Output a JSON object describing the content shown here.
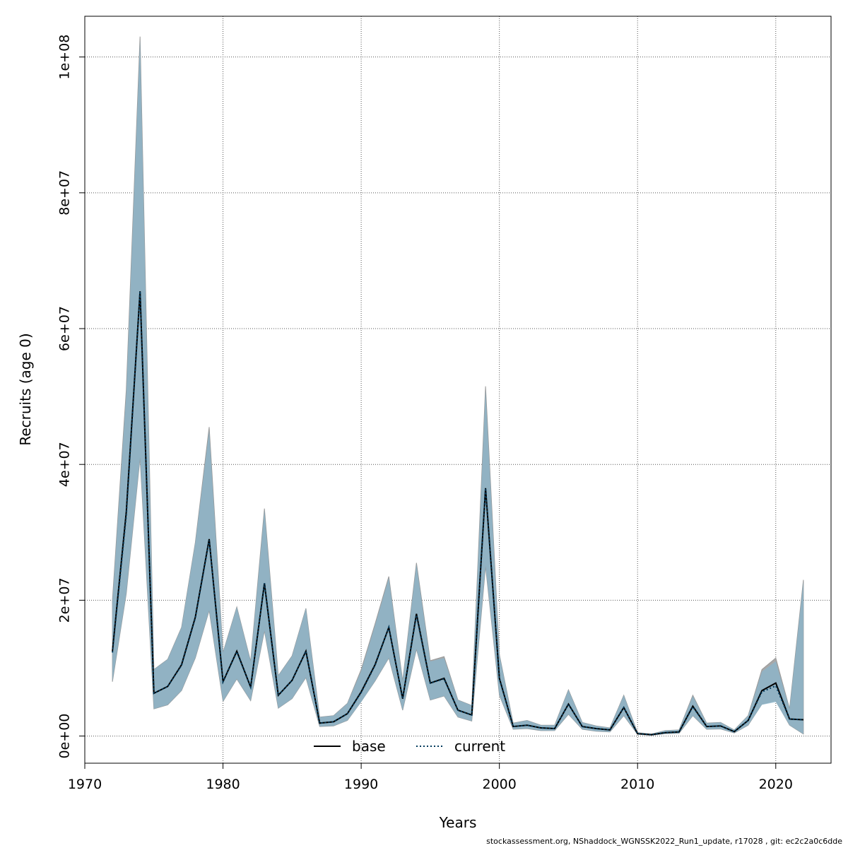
{
  "chart_data": {
    "type": "line",
    "xlabel": "Years",
    "ylabel": "Recruits (age 0)",
    "xlim": [
      1970,
      2024
    ],
    "ylim": [
      -4000000,
      106000000
    ],
    "xticks": [
      1970,
      1980,
      1990,
      2000,
      2010,
      2020
    ],
    "xtick_labels": [
      "1970",
      "1980",
      "1990",
      "2000",
      "2010",
      "2020"
    ],
    "yticks": [
      0,
      20000000,
      40000000,
      60000000,
      80000000,
      100000000
    ],
    "ytick_labels": [
      "0e+00",
      "2e+07",
      "4e+07",
      "6e+07",
      "8e+07",
      "1e+08"
    ],
    "grid": true,
    "legend_position": "bottom-center",
    "years": [
      1972,
      1973,
      1974,
      1975,
      1976,
      1977,
      1978,
      1979,
      1980,
      1981,
      1982,
      1983,
      1984,
      1985,
      1986,
      1987,
      1988,
      1989,
      1990,
      1991,
      1992,
      1993,
      1994,
      1995,
      1996,
      1997,
      1998,
      1999,
      2000,
      2001,
      2002,
      2003,
      2004,
      2005,
      2006,
      2007,
      2008,
      2009,
      2010,
      2011,
      2012,
      2013,
      2014,
      2015,
      2016,
      2017,
      2018,
      2019,
      2020,
      2021,
      2022
    ],
    "series": [
      {
        "name": "base",
        "style": "solid",
        "color": "#000000",
        "values": [
          12500000,
          33000000,
          65500000,
          6300000,
          7300000,
          10500000,
          17500000,
          29000000,
          8000000,
          12500000,
          7200000,
          22500000,
          6000000,
          8200000,
          12500000,
          1900000,
          2100000,
          3300000,
          6500000,
          10500000,
          16000000,
          5500000,
          18000000,
          7800000,
          8500000,
          3800000,
          3100000,
          36500000,
          8500000,
          1400000,
          1600000,
          1200000,
          1100000,
          4700000,
          1400000,
          1100000,
          900000,
          4200000,
          350000,
          200000,
          500000,
          600000,
          4400000,
          1400000,
          1500000,
          650000,
          2300000,
          6700000,
          7800000,
          2500000,
          2400000
        ],
        "lower": [
          8000000,
          21000000,
          41000000,
          4000000,
          4600000,
          6700000,
          11500000,
          18500000,
          5100000,
          8400000,
          5200000,
          15500000,
          4100000,
          5500000,
          8600000,
          1400000,
          1500000,
          2300000,
          5100000,
          8100000,
          11500000,
          3800000,
          12800000,
          5300000,
          5900000,
          2800000,
          2200000,
          25000000,
          6000000,
          1000000,
          1100000,
          800000,
          800000,
          3200000,
          1000000,
          700000,
          600000,
          3000000,
          250000,
          100000,
          350000,
          400000,
          3000000,
          1000000,
          1050000,
          450000,
          1600000,
          4700000,
          5200000,
          1600000,
          300000
        ],
        "upper": [
          20000000,
          51000000,
          103000000,
          9800000,
          11300000,
          16000000,
          28500000,
          45500000,
          12300000,
          19000000,
          11000000,
          33500000,
          8900000,
          11800000,
          18800000,
          2800000,
          3000000,
          4800000,
          9800000,
          16500000,
          23500000,
          8100000,
          25500000,
          11100000,
          11700000,
          5300000,
          4500000,
          51500000,
          12000000,
          1900000,
          2300000,
          1600000,
          1600000,
          6800000,
          2000000,
          1500000,
          1200000,
          6000000,
          500000,
          300000,
          800000,
          900000,
          6000000,
          1900000,
          2000000,
          900000,
          3000000,
          9800000,
          11500000,
          4000000,
          23000000
        ]
      },
      {
        "name": "current",
        "style": "dotted",
        "color": "#003a5c",
        "values": [
          12300000,
          32500000,
          65500000,
          6300000,
          7300000,
          10400000,
          17400000,
          28800000,
          8000000,
          12400000,
          7200000,
          22500000,
          6000000,
          8200000,
          12500000,
          1900000,
          2100000,
          3300000,
          6400000,
          10400000,
          16000000,
          5500000,
          17800000,
          7800000,
          8400000,
          3800000,
          3100000,
          36500000,
          8400000,
          1400000,
          1600000,
          1200000,
          1100000,
          4700000,
          1400000,
          1100000,
          900000,
          4200000,
          350000,
          200000,
          500000,
          600000,
          4300000,
          1400000,
          1500000,
          650000,
          2300000,
          6500000,
          7400000,
          2500000,
          2400000
        ],
        "lower": [
          8000000,
          21000000,
          41000000,
          4000000,
          4600000,
          6700000,
          11500000,
          18500000,
          5100000,
          8400000,
          5200000,
          15500000,
          4100000,
          5500000,
          8600000,
          1400000,
          1500000,
          2300000,
          5000000,
          8100000,
          11500000,
          3800000,
          12800000,
          5300000,
          5900000,
          2800000,
          2200000,
          25000000,
          6000000,
          1000000,
          1100000,
          800000,
          800000,
          3200000,
          1000000,
          700000,
          600000,
          3000000,
          250000,
          100000,
          350000,
          400000,
          3000000,
          1000000,
          1050000,
          450000,
          1600000,
          4600000,
          5000000,
          1600000,
          300000
        ],
        "upper": [
          19800000,
          50500000,
          102500000,
          9800000,
          11300000,
          16000000,
          28500000,
          45000000,
          12300000,
          19000000,
          11000000,
          33300000,
          8900000,
          11800000,
          18800000,
          2800000,
          3000000,
          4800000,
          9600000,
          16300000,
          23300000,
          8100000,
          25300000,
          11000000,
          11500000,
          5300000,
          4500000,
          51000000,
          12000000,
          1900000,
          2300000,
          1600000,
          1600000,
          6800000,
          2000000,
          1500000,
          1200000,
          6000000,
          500000,
          300000,
          800000,
          900000,
          5900000,
          1900000,
          2000000,
          900000,
          3000000,
          9500000,
          11000000,
          4000000,
          22800000
        ]
      }
    ]
  },
  "legend": {
    "base": "base",
    "current": "current"
  },
  "footer": "stockassessment.org, NShaddock_WGNSSK2022_Run1_update, r17028 , git: ec2c2a0c6dde",
  "colors": {
    "band_base": "#a8a8a8",
    "band_current": "#8ab6cc"
  }
}
